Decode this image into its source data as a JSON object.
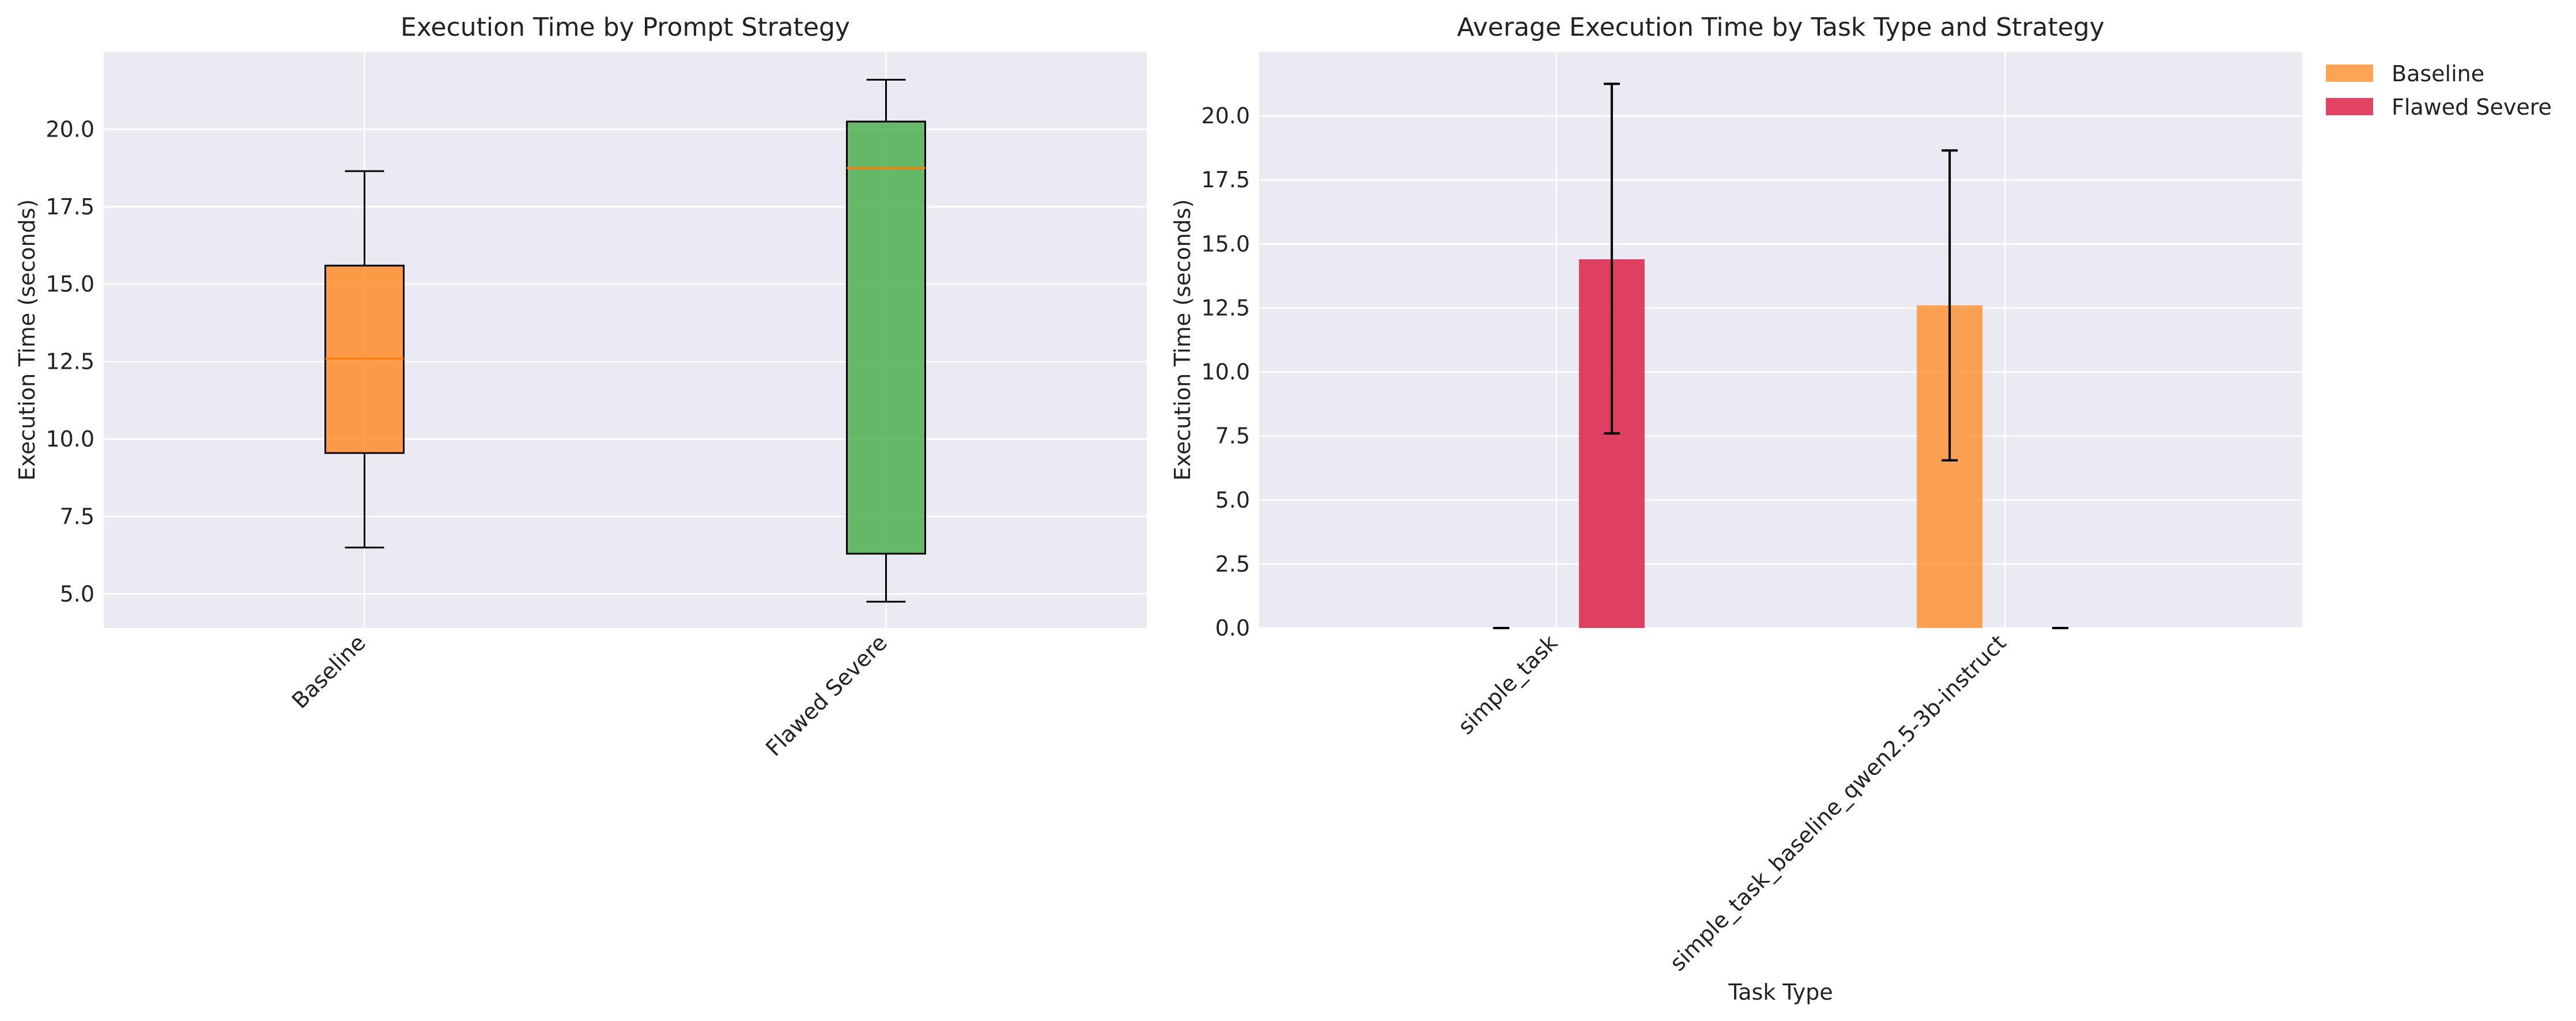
{
  "chart_data": [
    {
      "type": "box",
      "title": "Execution Time by Prompt Strategy",
      "xlabel": "",
      "ylabel": "Execution Time (seconds)",
      "ylim": [
        3.9,
        22.5
      ],
      "yticks": [
        5.0,
        7.5,
        10.0,
        12.5,
        15.0,
        17.5,
        20.0
      ],
      "grid": true,
      "categories": [
        "Baseline",
        "Flawed Severe"
      ],
      "boxes": [
        {
          "category": "Baseline",
          "color": "#FF8C2A",
          "whisker_low": 6.5,
          "q1": 9.55,
          "median": 12.6,
          "q3": 15.6,
          "whisker_high": 18.65
        },
        {
          "category": "Flawed Severe",
          "color": "#4CAF50",
          "whisker_low": 4.75,
          "q1": 6.3,
          "median": 18.75,
          "q3": 20.25,
          "whisker_high": 21.6
        }
      ]
    },
    {
      "type": "bar",
      "title": "Average Execution Time by Task Type and Strategy",
      "xlabel": "Task Type",
      "ylabel": "Execution Time (seconds)",
      "ylim": [
        0,
        22.5
      ],
      "yticks": [
        0.0,
        2.5,
        5.0,
        7.5,
        10.0,
        12.5,
        15.0,
        17.5,
        20.0
      ],
      "grid": true,
      "legend": "outside-top-right",
      "categories": [
        "simple_task",
        "simple_task_baseline_qwen2.5-3b-instruct"
      ],
      "series": [
        {
          "name": "Baseline",
          "color": "#FF8C2A",
          "values": [
            0.0,
            12.6
          ],
          "err_low": [
            0.0,
            6.55
          ],
          "err_high": [
            0.0,
            18.65
          ]
        },
        {
          "name": "Flawed Severe",
          "color": "#DC143C",
          "values": [
            14.4,
            0.0
          ],
          "err_low": [
            7.6,
            0.0
          ],
          "err_high": [
            21.25,
            0.0
          ]
        }
      ]
    }
  ]
}
